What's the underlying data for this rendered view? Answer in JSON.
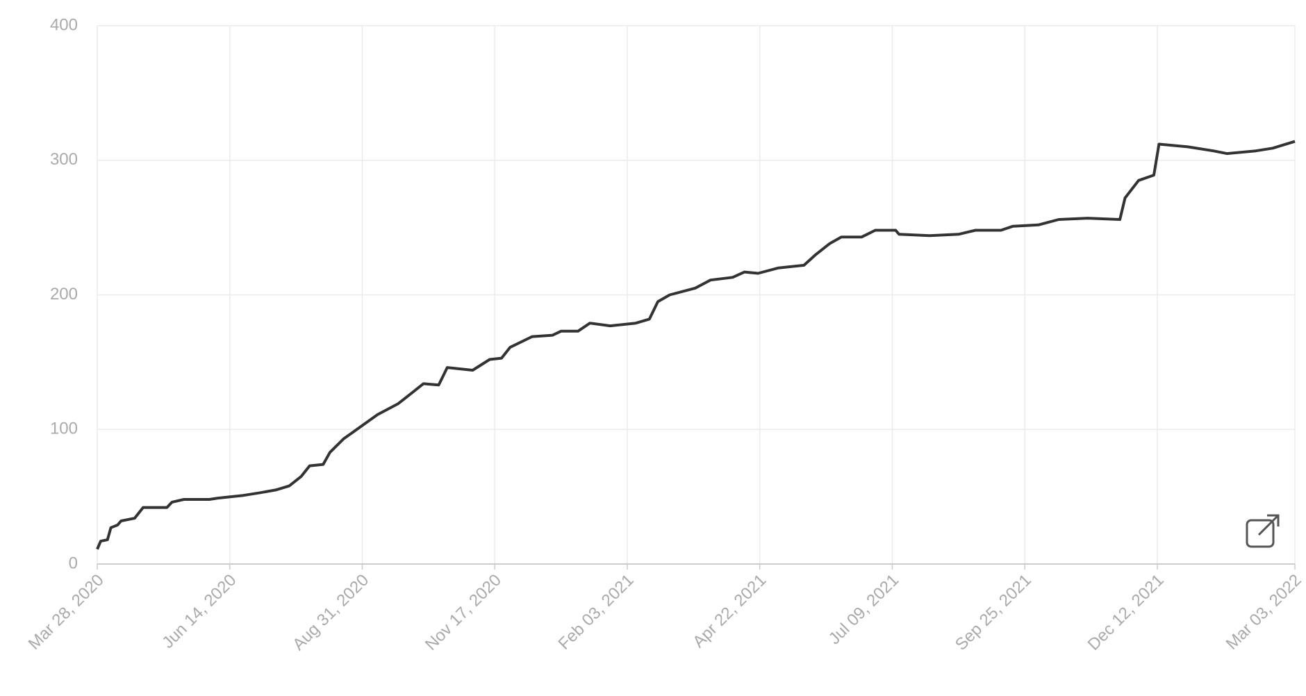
{
  "chart_data": {
    "type": "line",
    "color": "#333333",
    "grid": true,
    "x": [
      "2020-03-28",
      "2020-03-30",
      "2020-04-03",
      "2020-04-05",
      "2020-04-09",
      "2020-04-11",
      "2020-04-19",
      "2020-04-24",
      "2020-05-08",
      "2020-05-11",
      "2020-05-18",
      "2020-06-02",
      "2020-06-07",
      "2020-06-22",
      "2020-07-02",
      "2020-07-11",
      "2020-07-19",
      "2020-07-26",
      "2020-07-31",
      "2020-08-08",
      "2020-08-12",
      "2020-08-20",
      "2020-08-30",
      "2020-09-09",
      "2020-09-21",
      "2020-09-28",
      "2020-10-06",
      "2020-10-15",
      "2020-10-20",
      "2020-11-04",
      "2020-11-14",
      "2020-11-21",
      "2020-11-26",
      "2020-12-09",
      "2020-12-21",
      "2020-12-26",
      "2021-01-05",
      "2021-01-12",
      "2021-01-24",
      "2021-02-08",
      "2021-02-16",
      "2021-02-21",
      "2021-02-28",
      "2021-03-15",
      "2021-03-24",
      "2021-04-06",
      "2021-04-13",
      "2021-04-21",
      "2021-05-03",
      "2021-05-18",
      "2021-05-25",
      "2021-06-02",
      "2021-06-09",
      "2021-06-21",
      "2021-06-29",
      "2021-07-11",
      "2021-07-13",
      "2021-07-31",
      "2021-08-17",
      "2021-08-27",
      "2021-09-11",
      "2021-09-18",
      "2021-10-03",
      "2021-10-15",
      "2021-11-01",
      "2021-11-20",
      "2021-11-23",
      "2021-12-01",
      "2021-12-10",
      "2021-12-13",
      "2021-12-30",
      "2022-01-14",
      "2022-01-22",
      "2022-02-08",
      "2022-02-18",
      "2022-03-03"
    ],
    "values": [
      11,
      17,
      18,
      27,
      29,
      32,
      34,
      42,
      42,
      46,
      48,
      48,
      49,
      51,
      53,
      55,
      58,
      65,
      73,
      74,
      83,
      93,
      102,
      111,
      119,
      126,
      134,
      133,
      146,
      144,
      152,
      153,
      161,
      169,
      170,
      173,
      173,
      179,
      177,
      179,
      182,
      195,
      200,
      205,
      211,
      213,
      217,
      216,
      220,
      222,
      230,
      238,
      243,
      243,
      248,
      248,
      245,
      244,
      245,
      248,
      248,
      251,
      252,
      256,
      257,
      256,
      272,
      285,
      289,
      312,
      310,
      307,
      305,
      307,
      309,
      314
    ],
    "xlim": [
      "2020-03-28",
      "2022-03-03"
    ],
    "xticks": [
      {
        "value": "2020-03-28",
        "label": "Mar 28, 2020"
      },
      {
        "value": "2020-06-14",
        "label": "Jun 14, 2020"
      },
      {
        "value": "2020-08-31",
        "label": "Aug 31, 2020"
      },
      {
        "value": "2020-11-17",
        "label": "Nov 17, 2020"
      },
      {
        "value": "2021-02-03",
        "label": "Feb 03, 2021"
      },
      {
        "value": "2021-04-22",
        "label": "Apr 22, 2021"
      },
      {
        "value": "2021-07-09",
        "label": "Jul 09, 2021"
      },
      {
        "value": "2021-09-25",
        "label": "Sep 25, 2021"
      },
      {
        "value": "2021-12-12",
        "label": "Dec 12, 2021"
      },
      {
        "value": "2022-03-03",
        "label": "Mar 03, 2022"
      }
    ],
    "ylim": [
      0,
      400
    ],
    "yticks": [
      0,
      100,
      200,
      300,
      400
    ]
  }
}
